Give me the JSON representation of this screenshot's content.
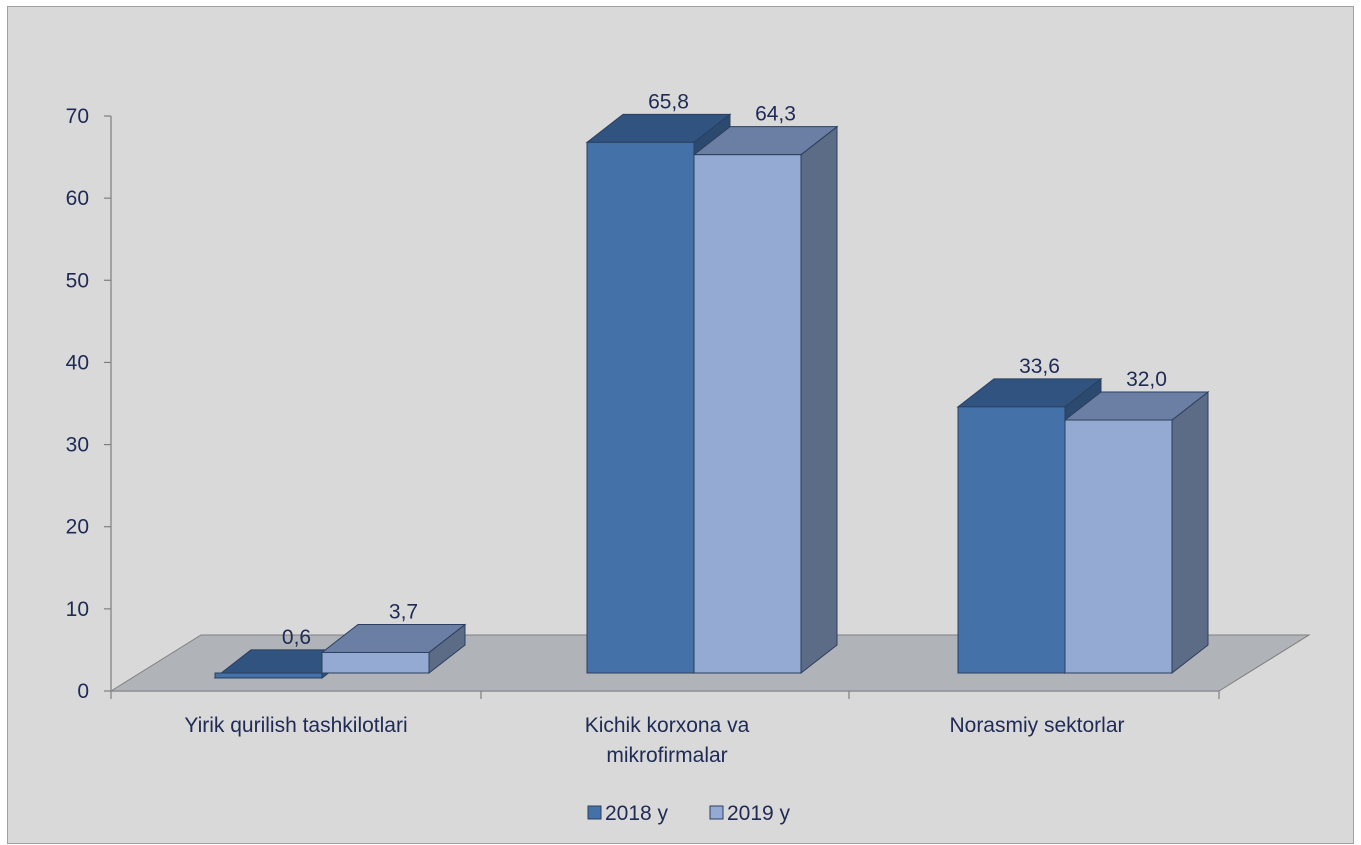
{
  "chart_data": {
    "type": "bar",
    "title": "",
    "xlabel": "",
    "ylabel": "",
    "ylim": [
      0,
      70
    ],
    "yticks": [
      0,
      10,
      20,
      30,
      40,
      50,
      60,
      70
    ],
    "categories": [
      [
        "Yirik qurilish tashkilotlari"
      ],
      [
        "Kichik korxona va",
        "mikrofirmalar"
      ],
      [
        "Norasmiy sektorlar"
      ]
    ],
    "series": [
      {
        "name": "2018 y",
        "values": [
          0.6,
          65.8,
          33.6
        ],
        "labels": [
          "0,6",
          "65,8",
          "33,6"
        ]
      },
      {
        "name": "2019 y",
        "values": [
          3.7,
          64.3,
          32.0
        ],
        "labels": [
          "3,7",
          "64,3",
          "32,0"
        ]
      }
    ],
    "legend_position": "bottom",
    "grid": false
  },
  "colors": {
    "series_2018": {
      "front": "#4472a8",
      "top": "#31537f",
      "side": "#2c4a70"
    },
    "series_2019": {
      "front": "#95aad3",
      "top": "#6b7fa4",
      "side": "#5c6b86"
    },
    "floor": "#b0b3b8",
    "axis": "#7f7f7f",
    "text": "#1f2a55"
  }
}
